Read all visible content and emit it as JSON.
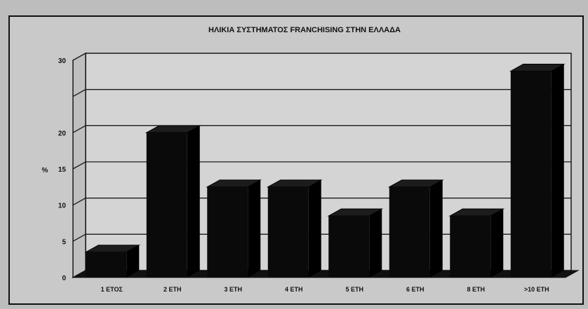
{
  "chart_data": {
    "type": "bar",
    "title": "ΗΛΙΚΙΑ ΣΥΣΤΗΜΑΤΟΣ FRANCHISING ΣΤΗΝ ΕΛΛΑΔΑ",
    "ylabel": "%",
    "xlabel": "",
    "categories": [
      "1 ΕΤΟΣ",
      "2 ΕΤΗ",
      "3 ΕΤΗ",
      "4 ΕΤΗ",
      "5 ΕΤΗ",
      "6 ΕΤΗ",
      "8 ΕΤΗ",
      ">10 ΕΤΗ"
    ],
    "values": [
      3.5,
      20,
      12.5,
      12.5,
      8.5,
      12.5,
      8.5,
      28.5
    ],
    "ylim": [
      0,
      30
    ],
    "yticks": [
      "0",
      "5",
      "10",
      "15",
      "20",
      "30"
    ],
    "grid": true,
    "style": "3d-column",
    "colors": {
      "bar": "#0a0a0a",
      "background": "#c9c9c9",
      "grid": "#1a1a1a"
    }
  }
}
